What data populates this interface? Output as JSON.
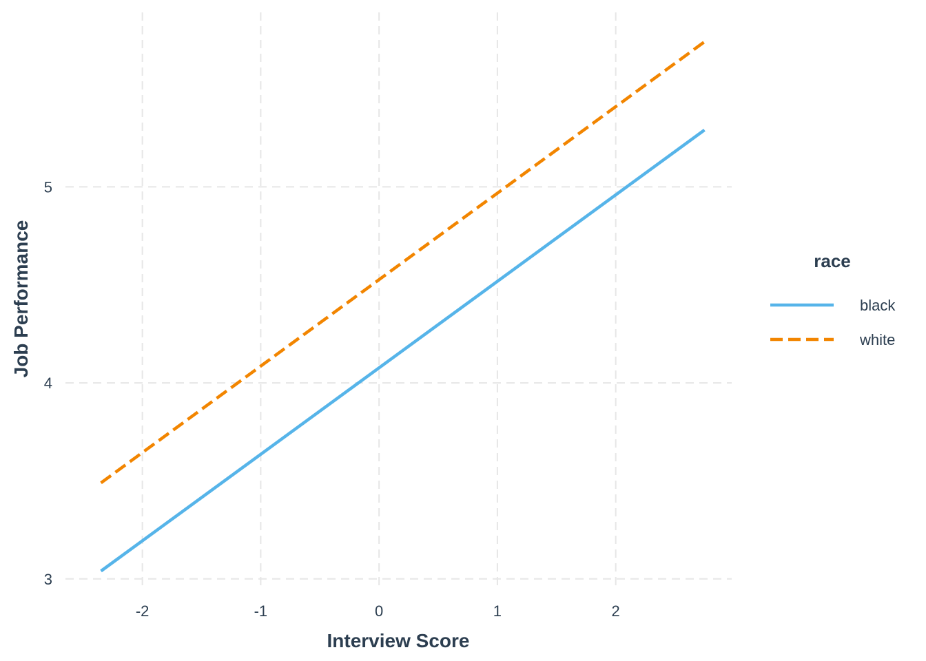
{
  "chart_data": {
    "type": "line",
    "title": "",
    "xlabel": "Interview Score",
    "ylabel": "Job Performance",
    "xlim": [
      -2.65,
      2.98
    ],
    "ylim": [
      2.95,
      5.89
    ],
    "x_ticks": [
      -2,
      -1,
      0,
      1,
      2
    ],
    "y_ticks": [
      3,
      4,
      5
    ],
    "x_tick_labels": [
      "-2",
      "-1",
      "0",
      "1",
      "2"
    ],
    "y_tick_labels": [
      "3",
      "4",
      "5"
    ],
    "grid": true,
    "legend": {
      "title": "race",
      "position": "right"
    },
    "series": [
      {
        "name": "black",
        "color": "#56b4e9",
        "line_style": "solid",
        "x": [
          -2.35,
          2.75
        ],
        "y": [
          3.04,
          5.29
        ]
      },
      {
        "name": "white",
        "color": "#f28500",
        "line_style": "dashed",
        "x": [
          -2.35,
          2.75
        ],
        "y": [
          3.49,
          5.74
        ]
      }
    ]
  }
}
